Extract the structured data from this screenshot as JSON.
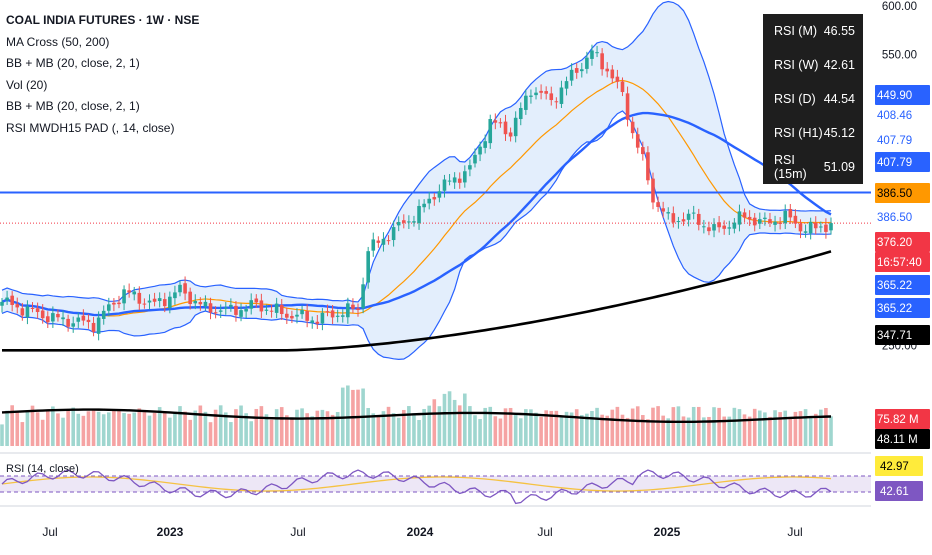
{
  "legend": {
    "title": "COAL INDIA FUTURES · 1W · NSE",
    "indicators": [
      "MA Cross (50, 200)",
      "BB + MB (20, close, 2, 1)",
      "Vol (20)",
      "BB + MB (20, close, 2, 1)",
      "RSI MWDH15 PAD (, 14, close)"
    ]
  },
  "rsi_table": [
    {
      "label": "RSI (M)",
      "value": "46.55"
    },
    {
      "label": "RSI (W)",
      "value": "42.61"
    },
    {
      "label": "RSI (D)",
      "value": "44.54"
    },
    {
      "label": "RSI (H1)",
      "value": "45.12"
    },
    {
      "label": "RSI (15m)",
      "value": "51.09"
    }
  ],
  "rsi_pane_label": "RSI (14, close)",
  "price_scale": {
    "ticks": [
      {
        "value": 600,
        "text": "600.00"
      },
      {
        "value": 550,
        "text": "550.00"
      },
      {
        "value": 250,
        "text": "250.00"
      }
    ],
    "labels": [
      {
        "value": 449.9,
        "text": "449.90",
        "bg": "#2962ff",
        "fg": "#ffffff"
      },
      {
        "value": 408.46,
        "text": "408.46",
        "bg": "#ffffff",
        "fg": "#2962ff"
      },
      {
        "value": 407.79,
        "text": "407.79",
        "bg": "#ffffff",
        "fg": "#2962ff"
      },
      {
        "value": 407.79,
        "text": "407.79",
        "bg": "#2962ff",
        "fg": "#ffffff"
      },
      {
        "value": 386.5,
        "text": "386.50",
        "bg": "#ff9800",
        "fg": "#000000"
      },
      {
        "value": 386.5,
        "text": "386.50",
        "bg": "#ffffff",
        "fg": "#2962ff"
      },
      {
        "value": 376.2,
        "text": "376.20",
        "bg": "#f23645",
        "fg": "#ffffff"
      },
      {
        "value": 376.2,
        "text": "16:57:40",
        "bg": "#f23645",
        "fg": "#ffffff"
      },
      {
        "value": 365.22,
        "text": "365.22",
        "bg": "#2962ff",
        "fg": "#ffffff"
      },
      {
        "value": 365.22,
        "text": "365.22",
        "bg": "#2962ff",
        "fg": "#ffffff"
      },
      {
        "value": 347.71,
        "text": "347.71",
        "bg": "#000000",
        "fg": "#ffffff"
      }
    ],
    "volume_labels": [
      {
        "text": "75.82 M",
        "bg": "#f23645",
        "fg": "#ffffff"
      },
      {
        "text": "48.11 M",
        "bg": "#000000",
        "fg": "#ffffff"
      }
    ],
    "rsi_labels": [
      {
        "text": "42.97",
        "bg": "#ffeb3b",
        "fg": "#000000"
      },
      {
        "text": "42.61",
        "bg": "#7e57c2",
        "fg": "#ffffff"
      }
    ]
  },
  "time_axis": [
    {
      "text": "Jul",
      "bold": false
    },
    {
      "text": "2023",
      "bold": true
    },
    {
      "text": "Jul",
      "bold": false
    },
    {
      "text": "2024",
      "bold": true
    },
    {
      "text": "Jul",
      "bold": false
    },
    {
      "text": "2025",
      "bold": true
    },
    {
      "text": "Jul",
      "bold": false
    }
  ],
  "colors": {
    "up": "#26a69a",
    "down": "#ef5350",
    "bb": "#2962ff",
    "bb_fill": "#e3eefc",
    "ma50": "#2962ff",
    "ma200": "#000000",
    "basis": "#ff9800",
    "vol_up": "#9fd6cf",
    "vol_down": "#f5a3a3",
    "rsi": "#7e57c2",
    "rsi_ma": "#f5c242"
  },
  "chart_data": {
    "type": "candlestick",
    "title": "COAL INDIA FUTURES · 1W · NSE",
    "y_range_price": [
      230,
      605
    ],
    "horizontal_line": 407.79,
    "last_price": 376.2,
    "series": [
      {
        "name": "MA Cross (50, 200)",
        "values": [
          365.22,
          347.71
        ]
      },
      {
        "name": "BB + MB (20, close, 2, 1)",
        "values": [
          407.79,
          386.5,
          365.22
        ]
      },
      {
        "name": "Vol (20)",
        "values": [
          75.82,
          48.11
        ]
      },
      {
        "name": "RSI (14, close)",
        "values": [
          42.97,
          42.61
        ]
      }
    ]
  }
}
